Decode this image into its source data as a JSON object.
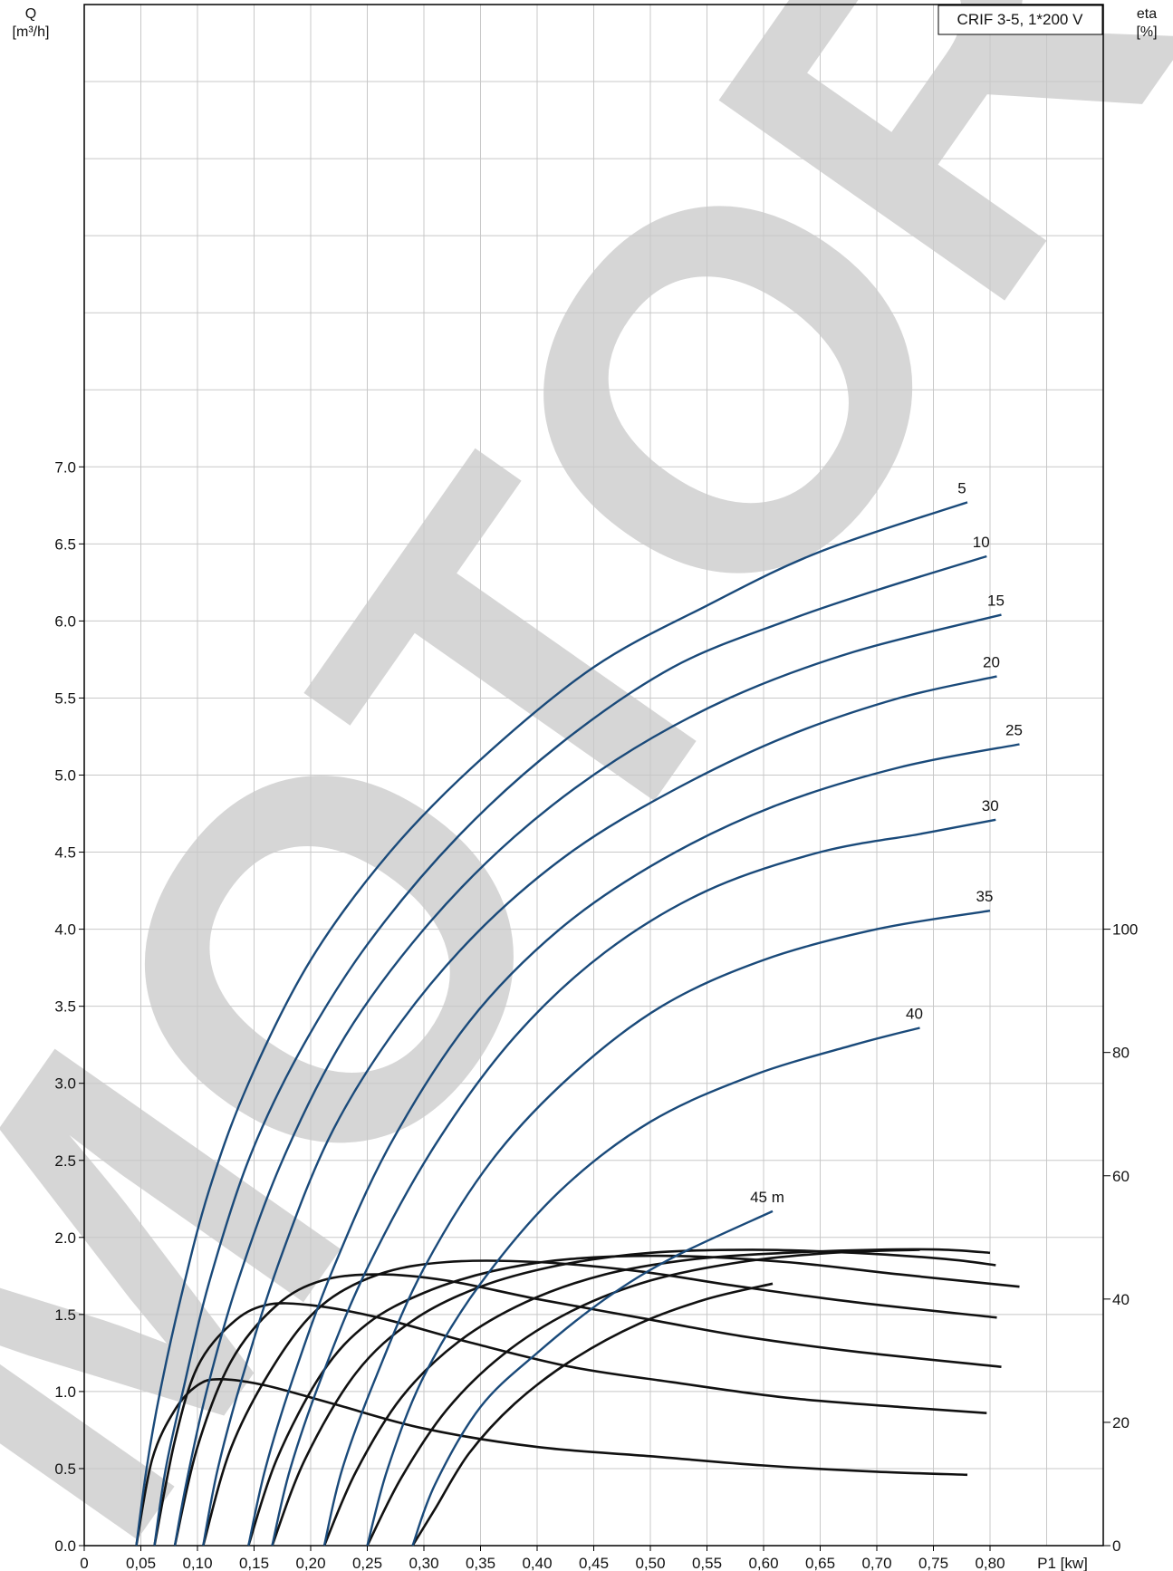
{
  "chart_data": {
    "type": "line",
    "title": "",
    "model_label": "CRIF 3-5, 1*200 V",
    "watermark": "MOTOR MO",
    "x_axis": {
      "label": "P1 [kw]",
      "range": [
        0,
        0.9
      ],
      "ticks": [
        0,
        0.05,
        0.1,
        0.15,
        0.2,
        0.25,
        0.3,
        0.35,
        0.4,
        0.45,
        0.5,
        0.55,
        0.6,
        0.65,
        0.7,
        0.75,
        0.8
      ],
      "tick_labels": [
        "0",
        "0,05",
        "0,10",
        "0,15",
        "0,20",
        "0,25",
        "0,30",
        "0,35",
        "0,40",
        "0,45",
        "0,50",
        "0,55",
        "0,60",
        "0,65",
        "0,70",
        "0,75",
        "0,80"
      ]
    },
    "y_axis_left": {
      "label_line1": "Q",
      "label_line2": "[m³/h]",
      "range": [
        0,
        10
      ],
      "ticks": [
        0,
        0.5,
        1.0,
        1.5,
        2.0,
        2.5,
        3.0,
        3.5,
        4.0,
        4.5,
        5.0,
        5.5,
        6.0,
        6.5,
        7.0
      ],
      "tick_labels": [
        "0.0",
        "0.5",
        "1.0",
        "1.5",
        "2.0",
        "2.5",
        "3.0",
        "3.5",
        "4.0",
        "4.5",
        "5.0",
        "5.5",
        "6.0",
        "6.5",
        "7.0"
      ]
    },
    "y_axis_right": {
      "label_line1": "eta",
      "label_line2": "[%]",
      "range": [
        0,
        250
      ],
      "ticks": [
        0,
        20,
        40,
        60,
        80,
        100
      ],
      "tick_labels": [
        "0",
        "20",
        "40",
        "60",
        "80",
        "100"
      ]
    },
    "grid": true,
    "series_flow": [
      {
        "name": "5",
        "color": "#1a4a7a",
        "points": [
          [
            0.046,
            0.0
          ],
          [
            0.055,
            0.5
          ],
          [
            0.067,
            1.0
          ],
          [
            0.085,
            1.6
          ],
          [
            0.11,
            2.3
          ],
          [
            0.145,
            3.0
          ],
          [
            0.2,
            3.8
          ],
          [
            0.27,
            4.5
          ],
          [
            0.35,
            5.1
          ],
          [
            0.45,
            5.7
          ],
          [
            0.55,
            6.1
          ],
          [
            0.65,
            6.45
          ],
          [
            0.78,
            6.77
          ]
        ]
      },
      {
        "name": "10",
        "color": "#1a4a7a",
        "points": [
          [
            0.062,
            0.0
          ],
          [
            0.072,
            0.5
          ],
          [
            0.087,
            1.0
          ],
          [
            0.11,
            1.7
          ],
          [
            0.145,
            2.5
          ],
          [
            0.19,
            3.2
          ],
          [
            0.25,
            3.9
          ],
          [
            0.33,
            4.6
          ],
          [
            0.42,
            5.2
          ],
          [
            0.52,
            5.7
          ],
          [
            0.62,
            6.0
          ],
          [
            0.7,
            6.2
          ],
          [
            0.797,
            6.42
          ]
        ]
      },
      {
        "name": "15",
        "color": "#1a4a7a",
        "points": [
          [
            0.08,
            0.0
          ],
          [
            0.09,
            0.4
          ],
          [
            0.108,
            1.0
          ],
          [
            0.135,
            1.7
          ],
          [
            0.175,
            2.5
          ],
          [
            0.23,
            3.3
          ],
          [
            0.3,
            4.0
          ],
          [
            0.38,
            4.6
          ],
          [
            0.47,
            5.1
          ],
          [
            0.57,
            5.5
          ],
          [
            0.68,
            5.8
          ],
          [
            0.81,
            6.04
          ]
        ]
      },
      {
        "name": "20",
        "color": "#1a4a7a",
        "points": [
          [
            0.105,
            0.0
          ],
          [
            0.118,
            0.5
          ],
          [
            0.14,
            1.1
          ],
          [
            0.175,
            1.9
          ],
          [
            0.22,
            2.7
          ],
          [
            0.28,
            3.4
          ],
          [
            0.35,
            4.0
          ],
          [
            0.43,
            4.5
          ],
          [
            0.52,
            4.9
          ],
          [
            0.62,
            5.25
          ],
          [
            0.72,
            5.5
          ],
          [
            0.806,
            5.64
          ]
        ]
      },
      {
        "name": "25",
        "color": "#1a4a7a",
        "points": [
          [
            0.145,
            0.0
          ],
          [
            0.16,
            0.5
          ],
          [
            0.185,
            1.1
          ],
          [
            0.22,
            1.8
          ],
          [
            0.27,
            2.6
          ],
          [
            0.34,
            3.4
          ],
          [
            0.42,
            4.0
          ],
          [
            0.51,
            4.45
          ],
          [
            0.61,
            4.8
          ],
          [
            0.72,
            5.05
          ],
          [
            0.826,
            5.2
          ]
        ]
      },
      {
        "name": "30",
        "color": "#1a4a7a",
        "points": [
          [
            0.166,
            0.0
          ],
          [
            0.182,
            0.5
          ],
          [
            0.21,
            1.1
          ],
          [
            0.25,
            1.8
          ],
          [
            0.31,
            2.6
          ],
          [
            0.38,
            3.3
          ],
          [
            0.46,
            3.85
          ],
          [
            0.55,
            4.25
          ],
          [
            0.65,
            4.5
          ],
          [
            0.74,
            4.62
          ],
          [
            0.805,
            4.71
          ]
        ]
      },
      {
        "name": "35",
        "color": "#1a4a7a",
        "points": [
          [
            0.212,
            0.0
          ],
          [
            0.228,
            0.5
          ],
          [
            0.258,
            1.1
          ],
          [
            0.3,
            1.8
          ],
          [
            0.36,
            2.5
          ],
          [
            0.43,
            3.05
          ],
          [
            0.51,
            3.5
          ],
          [
            0.6,
            3.8
          ],
          [
            0.7,
            4.0
          ],
          [
            0.8,
            4.12
          ]
        ]
      },
      {
        "name": "40",
        "color": "#1a4a7a",
        "points": [
          [
            0.25,
            0.0
          ],
          [
            0.268,
            0.5
          ],
          [
            0.3,
            1.1
          ],
          [
            0.35,
            1.7
          ],
          [
            0.42,
            2.3
          ],
          [
            0.5,
            2.75
          ],
          [
            0.59,
            3.05
          ],
          [
            0.68,
            3.25
          ],
          [
            0.738,
            3.36
          ]
        ]
      },
      {
        "name": "45 m",
        "color": "#1a4a7a",
        "points": [
          [
            0.29,
            0.0
          ],
          [
            0.31,
            0.4
          ],
          [
            0.35,
            0.9
          ],
          [
            0.4,
            1.25
          ],
          [
            0.46,
            1.6
          ],
          [
            0.52,
            1.87
          ],
          [
            0.608,
            2.17
          ]
        ]
      }
    ],
    "series_efficiency": [
      {
        "name": "eta-5",
        "color": "#111111",
        "points": [
          [
            0.046,
            0
          ],
          [
            0.06,
            14
          ],
          [
            0.08,
            22
          ],
          [
            0.1,
            26
          ],
          [
            0.12,
            27
          ],
          [
            0.16,
            26
          ],
          [
            0.22,
            23
          ],
          [
            0.3,
            19
          ],
          [
            0.4,
            16
          ],
          [
            0.5,
            14.5
          ],
          [
            0.6,
            13
          ],
          [
            0.7,
            12
          ],
          [
            0.78,
            11.5
          ]
        ]
      },
      {
        "name": "eta-10",
        "color": "#111111",
        "points": [
          [
            0.062,
            0
          ],
          [
            0.08,
            17
          ],
          [
            0.1,
            29
          ],
          [
            0.13,
            36
          ],
          [
            0.16,
            39
          ],
          [
            0.2,
            39
          ],
          [
            0.26,
            37
          ],
          [
            0.34,
            33
          ],
          [
            0.43,
            29
          ],
          [
            0.52,
            26.5
          ],
          [
            0.62,
            24
          ],
          [
            0.72,
            22.5
          ],
          [
            0.797,
            21.5
          ]
        ]
      },
      {
        "name": "eta-15",
        "color": "#111111",
        "points": [
          [
            0.08,
            0
          ],
          [
            0.1,
            16
          ],
          [
            0.13,
            30
          ],
          [
            0.17,
            39
          ],
          [
            0.21,
            43
          ],
          [
            0.26,
            44
          ],
          [
            0.32,
            43
          ],
          [
            0.4,
            40
          ],
          [
            0.49,
            37
          ],
          [
            0.58,
            34
          ],
          [
            0.68,
            31.5
          ],
          [
            0.81,
            29
          ]
        ]
      },
      {
        "name": "eta-20",
        "color": "#111111",
        "points": [
          [
            0.105,
            0
          ],
          [
            0.13,
            16
          ],
          [
            0.17,
            30
          ],
          [
            0.21,
            39
          ],
          [
            0.26,
            44
          ],
          [
            0.32,
            46
          ],
          [
            0.4,
            46
          ],
          [
            0.49,
            44.5
          ],
          [
            0.58,
            42
          ],
          [
            0.68,
            39.5
          ],
          [
            0.806,
            37
          ]
        ]
      },
      {
        "name": "eta-25",
        "color": "#111111",
        "points": [
          [
            0.145,
            0
          ],
          [
            0.17,
            14
          ],
          [
            0.21,
            28
          ],
          [
            0.25,
            36
          ],
          [
            0.3,
            41
          ],
          [
            0.36,
            44.5
          ],
          [
            0.43,
            46.5
          ],
          [
            0.52,
            47
          ],
          [
            0.62,
            46
          ],
          [
            0.72,
            44
          ],
          [
            0.826,
            42
          ]
        ]
      },
      {
        "name": "eta-30",
        "color": "#111111",
        "points": [
          [
            0.166,
            0
          ],
          [
            0.195,
            14
          ],
          [
            0.24,
            28
          ],
          [
            0.29,
            36.5
          ],
          [
            0.35,
            42
          ],
          [
            0.42,
            45.5
          ],
          [
            0.5,
            47.5
          ],
          [
            0.59,
            48
          ],
          [
            0.68,
            47.5
          ],
          [
            0.76,
            46.5
          ],
          [
            0.805,
            45.5
          ]
        ]
      },
      {
        "name": "eta-35",
        "color": "#111111",
        "points": [
          [
            0.212,
            0
          ],
          [
            0.24,
            12
          ],
          [
            0.28,
            24
          ],
          [
            0.33,
            33
          ],
          [
            0.39,
            39.5
          ],
          [
            0.46,
            44
          ],
          [
            0.54,
            46.5
          ],
          [
            0.62,
            47.5
          ],
          [
            0.7,
            48
          ],
          [
            0.76,
            48
          ],
          [
            0.8,
            47.5
          ]
        ]
      },
      {
        "name": "eta-40",
        "color": "#111111",
        "points": [
          [
            0.25,
            0
          ],
          [
            0.28,
            11
          ],
          [
            0.32,
            22
          ],
          [
            0.37,
            31
          ],
          [
            0.43,
            38
          ],
          [
            0.5,
            43
          ],
          [
            0.58,
            46
          ],
          [
            0.66,
            47.5
          ],
          [
            0.738,
            48
          ]
        ]
      },
      {
        "name": "eta-45",
        "color": "#111111",
        "points": [
          [
            0.29,
            0
          ],
          [
            0.31,
            6
          ],
          [
            0.34,
            15
          ],
          [
            0.38,
            23
          ],
          [
            0.43,
            30
          ],
          [
            0.49,
            36
          ],
          [
            0.55,
            40
          ],
          [
            0.608,
            42.5
          ]
        ]
      }
    ]
  }
}
